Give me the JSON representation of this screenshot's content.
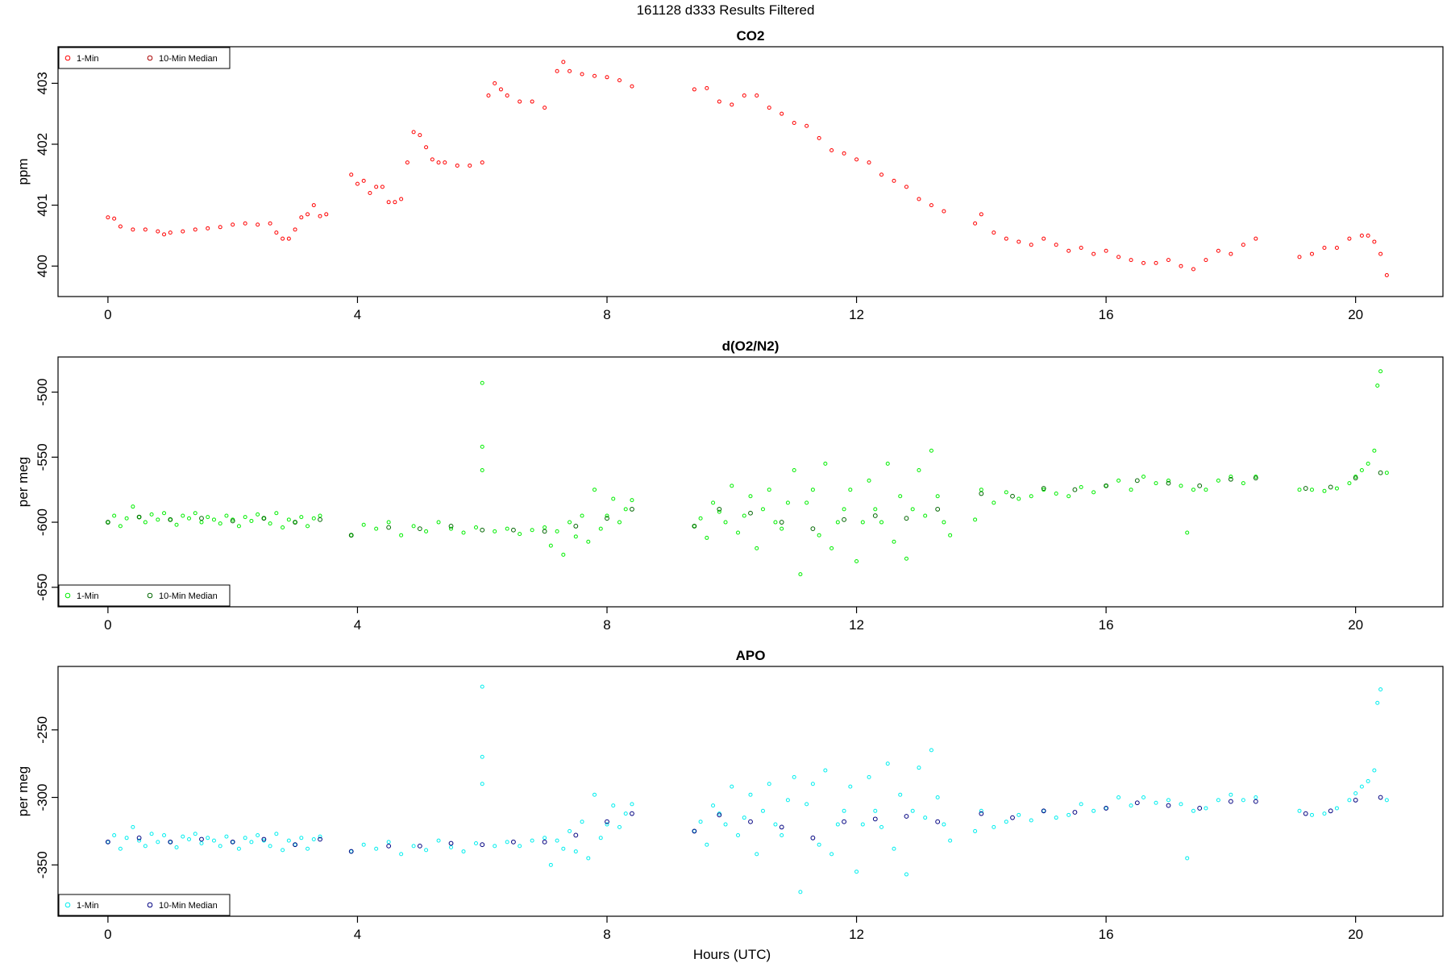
{
  "figure": {
    "title": "161128   d333   Results Filtered",
    "xlabel": "Hours (UTC)"
  },
  "legend": {
    "one_min": "1-Min",
    "median": "10-Min Median"
  },
  "chart_data": [
    {
      "type": "scatter",
      "title": "CO2",
      "xlabel": "",
      "ylabel": "ppm",
      "xlim": [
        -0.8,
        21.4
      ],
      "ylim": [
        399.5,
        403.6
      ],
      "xticks": [
        0,
        4,
        8,
        12,
        16,
        20
      ],
      "yticks": [
        400,
        401,
        402,
        403
      ],
      "legend_position": "top-left",
      "color_1min": "#ff0000",
      "color_median": "#aa0000",
      "series": [
        {
          "name": "1-Min",
          "x": [
            0.0,
            0.1,
            0.2,
            0.4,
            0.6,
            0.8,
            0.9,
            1.0,
            1.2,
            1.4,
            1.6,
            1.8,
            2.0,
            2.2,
            2.4,
            2.6,
            2.7,
            2.8,
            2.9,
            3.0,
            3.1,
            3.2,
            3.3,
            3.4,
            3.5,
            3.9,
            4.0,
            4.1,
            4.2,
            4.3,
            4.4,
            4.5,
            4.6,
            4.7,
            4.8,
            4.9,
            5.0,
            5.1,
            5.2,
            5.3,
            5.4,
            5.6,
            5.8,
            6.0,
            6.1,
            6.2,
            6.3,
            6.4,
            6.6,
            6.8,
            7.0,
            7.2,
            7.3,
            7.4,
            7.6,
            7.8,
            8.0,
            8.2,
            8.4,
            9.4,
            9.6,
            9.8,
            10.0,
            10.2,
            10.4,
            10.6,
            10.8,
            11.0,
            11.2,
            11.4,
            11.6,
            11.8,
            12.0,
            12.2,
            12.4,
            12.6,
            12.8,
            13.0,
            13.2,
            13.4,
            13.9,
            14.0,
            14.2,
            14.4,
            14.6,
            14.8,
            15.0,
            15.2,
            15.4,
            15.6,
            15.8,
            16.0,
            16.2,
            16.4,
            16.6,
            16.8,
            17.0,
            17.2,
            17.4,
            17.6,
            17.8,
            18.0,
            18.2,
            18.4,
            19.1,
            19.3,
            19.5,
            19.7,
            19.9,
            20.1,
            20.2,
            20.3,
            20.4,
            20.5
          ],
          "y": [
            400.8,
            400.78,
            400.65,
            400.6,
            400.6,
            400.57,
            400.52,
            400.55,
            400.57,
            400.6,
            400.62,
            400.64,
            400.68,
            400.7,
            400.68,
            400.7,
            400.55,
            400.45,
            400.45,
            400.6,
            400.8,
            400.85,
            401.0,
            400.82,
            400.85,
            401.5,
            401.35,
            401.4,
            401.2,
            401.3,
            401.3,
            401.05,
            401.05,
            401.1,
            401.7,
            402.2,
            402.15,
            401.95,
            401.75,
            401.7,
            401.7,
            401.65,
            401.65,
            401.7,
            402.8,
            403.0,
            402.9,
            402.8,
            402.7,
            402.7,
            402.6,
            403.2,
            403.35,
            403.2,
            403.15,
            403.12,
            403.1,
            403.05,
            402.95,
            402.9,
            402.92,
            402.7,
            402.65,
            402.8,
            402.8,
            402.6,
            402.5,
            402.35,
            402.3,
            402.1,
            401.9,
            401.85,
            401.75,
            401.7,
            401.5,
            401.4,
            401.3,
            401.1,
            401.0,
            400.9,
            400.7,
            400.85,
            400.55,
            400.45,
            400.4,
            400.35,
            400.45,
            400.35,
            400.25,
            400.3,
            400.2,
            400.25,
            400.15,
            400.1,
            400.05,
            400.05,
            400.1,
            400.0,
            399.95,
            400.1,
            400.25,
            400.2,
            400.35,
            400.45,
            400.15,
            400.2,
            400.3,
            400.3,
            400.45,
            400.5,
            400.5,
            400.4,
            400.2,
            399.85
          ]
        }
      ]
    },
    {
      "type": "scatter",
      "title": "d(O2/N2)",
      "xlabel": "",
      "ylabel": "per meg",
      "xlim": [
        -0.8,
        21.4
      ],
      "ylim": [
        -665,
        -473
      ],
      "xticks": [
        0,
        4,
        8,
        12,
        16,
        20
      ],
      "yticks": [
        -650,
        -600,
        -550,
        -500
      ],
      "legend_position": "bottom-left",
      "color_1min": "#00ee00",
      "color_median": "#006600",
      "series": [
        {
          "name": "1-Min",
          "x": [
            0.0,
            0.1,
            0.2,
            0.3,
            0.4,
            0.5,
            0.6,
            0.7,
            0.8,
            0.9,
            1.0,
            1.1,
            1.2,
            1.3,
            1.4,
            1.5,
            1.6,
            1.7,
            1.8,
            1.9,
            2.0,
            2.1,
            2.2,
            2.3,
            2.4,
            2.5,
            2.6,
            2.7,
            2.8,
            2.9,
            3.0,
            3.1,
            3.2,
            3.3,
            3.4,
            3.9,
            4.1,
            4.3,
            4.5,
            4.7,
            4.9,
            5.1,
            5.3,
            5.5,
            5.7,
            5.9,
            6.0,
            6.0,
            6.0,
            6.2,
            6.4,
            6.6,
            6.8,
            7.0,
            7.1,
            7.2,
            7.3,
            7.4,
            7.5,
            7.6,
            7.7,
            7.8,
            7.9,
            8.0,
            8.1,
            8.2,
            8.3,
            8.4,
            9.4,
            9.5,
            9.6,
            9.7,
            9.8,
            9.9,
            10.0,
            10.1,
            10.2,
            10.3,
            10.4,
            10.5,
            10.6,
            10.7,
            10.8,
            10.9,
            11.0,
            11.1,
            11.2,
            11.3,
            11.4,
            11.5,
            11.6,
            11.7,
            11.8,
            11.9,
            12.0,
            12.1,
            12.2,
            12.3,
            12.4,
            12.5,
            12.6,
            12.7,
            12.8,
            12.9,
            13.0,
            13.1,
            13.2,
            13.3,
            13.4,
            13.5,
            13.9,
            14.0,
            14.2,
            14.4,
            14.6,
            14.8,
            15.0,
            15.2,
            15.4,
            15.6,
            15.8,
            16.0,
            16.2,
            16.4,
            16.6,
            16.8,
            17.0,
            17.2,
            17.3,
            17.4,
            17.6,
            17.8,
            18.0,
            18.2,
            18.4,
            19.1,
            19.3,
            19.5,
            19.7,
            19.9,
            20.0,
            20.1,
            20.2,
            20.3,
            20.35,
            20.4,
            20.5
          ],
          "y": [
            -600,
            -595,
            -603,
            -597,
            -588,
            -596,
            -600,
            -594,
            -598,
            -593,
            -598,
            -602,
            -595,
            -597,
            -593,
            -600,
            -596,
            -598,
            -601,
            -595,
            -598,
            -603,
            -596,
            -599,
            -594,
            -597,
            -601,
            -593,
            -604,
            -598,
            -600,
            -596,
            -603,
            -597,
            -595,
            -610,
            -602,
            -605,
            -600,
            -610,
            -603,
            -607,
            -600,
            -605,
            -608,
            -604,
            -493,
            -542,
            -560,
            -607,
            -605,
            -609,
            -606,
            -604,
            -618,
            -607,
            -625,
            -600,
            -611,
            -595,
            -615,
            -575,
            -605,
            -595,
            -582,
            -600,
            -590,
            -583,
            -603,
            -597,
            -612,
            -585,
            -592,
            -600,
            -572,
            -608,
            -595,
            -580,
            -620,
            -590,
            -575,
            -600,
            -605,
            -585,
            -560,
            -640,
            -585,
            -575,
            -610,
            -555,
            -620,
            -600,
            -590,
            -575,
            -630,
            -600,
            -568,
            -590,
            -600,
            -555,
            -615,
            -580,
            -628,
            -590,
            -560,
            -595,
            -545,
            -580,
            -600,
            -610,
            -598,
            -575,
            -585,
            -577,
            -582,
            -580,
            -575,
            -578,
            -580,
            -573,
            -577,
            -572,
            -568,
            -575,
            -565,
            -570,
            -568,
            -572,
            -608,
            -575,
            -575,
            -568,
            -565,
            -570,
            -565,
            -575,
            -575,
            -576,
            -574,
            -570,
            -565,
            -560,
            -555,
            -545,
            -495,
            -484,
            -562
          ]
        },
        {
          "name": "10-Min Median",
          "x": [
            0.0,
            0.5,
            1.0,
            1.5,
            2.0,
            2.5,
            3.0,
            3.4,
            3.9,
            4.5,
            5.0,
            5.5,
            6.0,
            6.5,
            7.0,
            7.5,
            8.0,
            8.4,
            9.4,
            9.8,
            10.3,
            10.8,
            11.3,
            11.8,
            12.3,
            12.8,
            13.3,
            14.0,
            14.5,
            15.0,
            15.5,
            16.0,
            16.5,
            17.0,
            17.5,
            18.0,
            18.4,
            19.2,
            19.6,
            20.0,
            20.4
          ],
          "y": [
            -600,
            -596,
            -598,
            -597,
            -599,
            -597,
            -600,
            -598,
            -610,
            -604,
            -605,
            -603,
            -606,
            -606,
            -607,
            -603,
            -597,
            -590,
            -603,
            -590,
            -593,
            -600,
            -605,
            -598,
            -595,
            -597,
            -590,
            -578,
            -580,
            -574,
            -575,
            -572,
            -568,
            -570,
            -572,
            -567,
            -566,
            -574,
            -573,
            -566,
            -562
          ]
        }
      ]
    },
    {
      "type": "scatter",
      "title": "APO",
      "xlabel": "Hours (UTC)",
      "ylabel": "per meg",
      "xlim": [
        -0.8,
        21.4
      ],
      "ylim": [
        -388,
        -203
      ],
      "xticks": [
        0,
        4,
        8,
        12,
        16,
        20
      ],
      "yticks": [
        -350,
        -300,
        -250
      ],
      "legend_position": "bottom-left",
      "color_1min": "#00eeee",
      "color_median": "#000080",
      "series": [
        {
          "name": "1-Min",
          "x": [
            0.0,
            0.1,
            0.2,
            0.3,
            0.4,
            0.5,
            0.6,
            0.7,
            0.8,
            0.9,
            1.0,
            1.1,
            1.2,
            1.3,
            1.4,
            1.5,
            1.6,
            1.7,
            1.8,
            1.9,
            2.0,
            2.1,
            2.2,
            2.3,
            2.4,
            2.5,
            2.6,
            2.7,
            2.8,
            2.9,
            3.0,
            3.1,
            3.2,
            3.3,
            3.4,
            3.9,
            4.1,
            4.3,
            4.5,
            4.7,
            4.9,
            5.1,
            5.3,
            5.5,
            5.7,
            5.9,
            6.0,
            6.0,
            6.0,
            6.2,
            6.4,
            6.6,
            6.8,
            7.0,
            7.1,
            7.2,
            7.3,
            7.4,
            7.5,
            7.6,
            7.7,
            7.8,
            7.9,
            8.0,
            8.1,
            8.2,
            8.3,
            8.4,
            9.4,
            9.5,
            9.6,
            9.7,
            9.8,
            9.9,
            10.0,
            10.1,
            10.2,
            10.3,
            10.4,
            10.5,
            10.6,
            10.7,
            10.8,
            10.9,
            11.0,
            11.1,
            11.2,
            11.3,
            11.4,
            11.5,
            11.6,
            11.7,
            11.8,
            11.9,
            12.0,
            12.1,
            12.2,
            12.3,
            12.4,
            12.5,
            12.6,
            12.7,
            12.8,
            12.9,
            13.0,
            13.1,
            13.2,
            13.3,
            13.4,
            13.5,
            13.9,
            14.0,
            14.2,
            14.4,
            14.6,
            14.8,
            15.0,
            15.2,
            15.4,
            15.6,
            15.8,
            16.0,
            16.2,
            16.4,
            16.6,
            16.8,
            17.0,
            17.2,
            17.3,
            17.4,
            17.6,
            17.8,
            18.0,
            18.2,
            18.4,
            19.1,
            19.3,
            19.5,
            19.7,
            19.9,
            20.0,
            20.1,
            20.2,
            20.3,
            20.35,
            20.4,
            20.5
          ],
          "y": [
            -333,
            -328,
            -338,
            -330,
            -322,
            -332,
            -336,
            -327,
            -333,
            -328,
            -333,
            -337,
            -329,
            -331,
            -327,
            -334,
            -330,
            -332,
            -336,
            -329,
            -333,
            -338,
            -330,
            -333,
            -328,
            -332,
            -336,
            -327,
            -339,
            -332,
            -335,
            -330,
            -338,
            -331,
            -329,
            -340,
            -335,
            -338,
            -333,
            -342,
            -336,
            -339,
            -332,
            -337,
            -340,
            -334,
            -218,
            -270,
            -290,
            -336,
            -333,
            -336,
            -332,
            -330,
            -350,
            -332,
            -338,
            -325,
            -340,
            -318,
            -345,
            -298,
            -330,
            -320,
            -306,
            -322,
            -312,
            -305,
            -325,
            -318,
            -335,
            -306,
            -312,
            -320,
            -292,
            -328,
            -315,
            -298,
            -342,
            -310,
            -290,
            -320,
            -328,
            -302,
            -285,
            -370,
            -305,
            -290,
            -335,
            -280,
            -342,
            -320,
            -310,
            -292,
            -355,
            -320,
            -285,
            -310,
            -322,
            -275,
            -338,
            -298,
            -357,
            -310,
            -278,
            -315,
            -265,
            -300,
            -320,
            -332,
            -325,
            -310,
            -322,
            -318,
            -313,
            -317,
            -310,
            -315,
            -313,
            -305,
            -310,
            -308,
            -300,
            -306,
            -300,
            -304,
            -302,
            -305,
            -345,
            -310,
            -308,
            -302,
            -298,
            -302,
            -300,
            -310,
            -313,
            -312,
            -308,
            -302,
            -297,
            -292,
            -288,
            -280,
            -230,
            -220,
            -302
          ]
        },
        {
          "name": "10-Min Median",
          "x": [
            0.0,
            0.5,
            1.0,
            1.5,
            2.0,
            2.5,
            3.0,
            3.4,
            3.9,
            4.5,
            5.0,
            5.5,
            6.0,
            6.5,
            7.0,
            7.5,
            8.0,
            8.4,
            9.4,
            9.8,
            10.3,
            10.8,
            11.3,
            11.8,
            12.3,
            12.8,
            13.3,
            14.0,
            14.5,
            15.0,
            15.5,
            16.0,
            16.5,
            17.0,
            17.5,
            18.0,
            18.4,
            19.2,
            19.6,
            20.0,
            20.4
          ],
          "y": [
            -333,
            -330,
            -333,
            -331,
            -333,
            -331,
            -335,
            -331,
            -340,
            -336,
            -336,
            -334,
            -335,
            -333,
            -333,
            -328,
            -318,
            -312,
            -325,
            -313,
            -318,
            -322,
            -330,
            -318,
            -316,
            -314,
            -318,
            -312,
            -315,
            -310,
            -311,
            -308,
            -304,
            -306,
            -308,
            -303,
            -303,
            -312,
            -310,
            -302,
            -300
          ]
        }
      ]
    }
  ]
}
